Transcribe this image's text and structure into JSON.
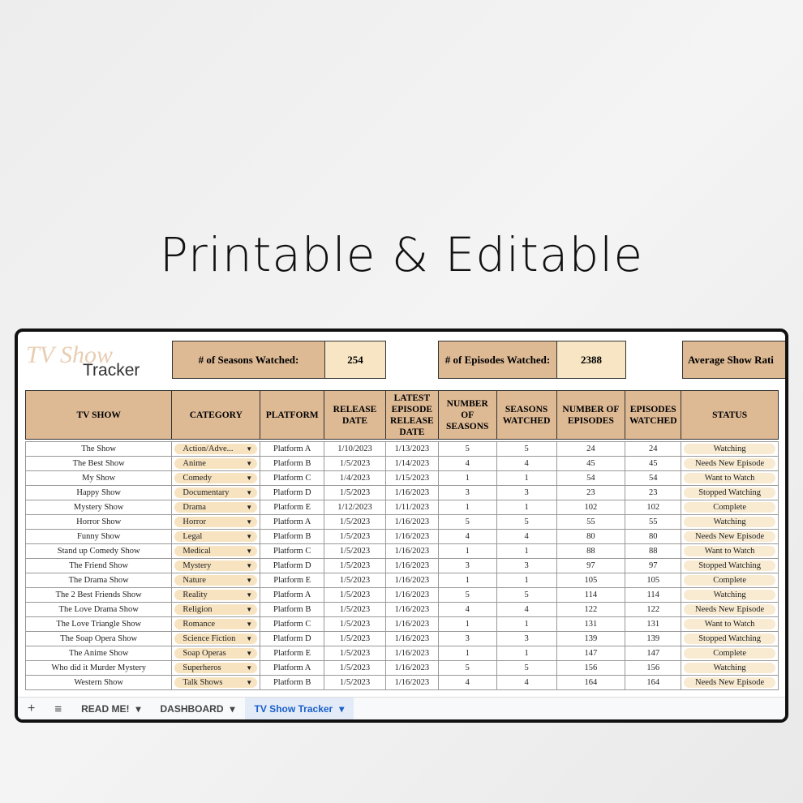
{
  "headline": "Printable & Editable",
  "logo": {
    "script": "TV Show",
    "word": "Tracker"
  },
  "summary": [
    {
      "label": "# of Seasons Watched:",
      "value": 254
    },
    {
      "label": "# of Episodes Watched:",
      "value": 2388
    },
    {
      "label": "Average Show Rati"
    }
  ],
  "table": {
    "headers": [
      "TV SHOW",
      "CATEGORY",
      "PLATFORM",
      "RELEASE DATE",
      "LATEST EPISODE RELEASE DATE",
      "NUMBER OF SEASONS",
      "SEASONS WATCHED",
      "NUMBER OF EPISODES",
      "EPISODES WATCHED",
      "STATUS"
    ],
    "rows": [
      [
        "The Show",
        "Action/Adve...",
        "Platform A",
        "1/10/2023",
        "1/13/2023",
        5,
        5,
        24,
        24,
        "Watching"
      ],
      [
        "The Best Show",
        "Anime",
        "Platform B",
        "1/5/2023",
        "1/14/2023",
        4,
        4,
        45,
        45,
        "Needs New Episode"
      ],
      [
        "My Show",
        "Comedy",
        "Platform C",
        "1/4/2023",
        "1/15/2023",
        1,
        1,
        54,
        54,
        "Want to Watch"
      ],
      [
        "Happy Show",
        "Documentary",
        "Platform D",
        "1/5/2023",
        "1/16/2023",
        3,
        3,
        23,
        23,
        "Stopped Watching"
      ],
      [
        "Mystery Show",
        "Drama",
        "Platform E",
        "1/12/2023",
        "1/11/2023",
        1,
        1,
        102,
        102,
        "Complete"
      ],
      [
        "Horror Show",
        "Horror",
        "Platform A",
        "1/5/2023",
        "1/16/2023",
        5,
        5,
        55,
        55,
        "Watching"
      ],
      [
        "Funny Show",
        "Legal",
        "Platform B",
        "1/5/2023",
        "1/16/2023",
        4,
        4,
        80,
        80,
        "Needs New Episode"
      ],
      [
        "Stand up Comedy Show",
        "Medical",
        "Platform C",
        "1/5/2023",
        "1/16/2023",
        1,
        1,
        88,
        88,
        "Want to Watch"
      ],
      [
        "The Friend Show",
        "Mystery",
        "Platform D",
        "1/5/2023",
        "1/16/2023",
        3,
        3,
        97,
        97,
        "Stopped Watching"
      ],
      [
        "The Drama Show",
        "Nature",
        "Platform E",
        "1/5/2023",
        "1/16/2023",
        1,
        1,
        105,
        105,
        "Complete"
      ],
      [
        "The 2 Best Friends Show",
        "Reality",
        "Platform A",
        "1/5/2023",
        "1/16/2023",
        5,
        5,
        114,
        114,
        "Watching"
      ],
      [
        "The Love Drama Show",
        "Religion",
        "Platform B",
        "1/5/2023",
        "1/16/2023",
        4,
        4,
        122,
        122,
        "Needs New Episode"
      ],
      [
        "The Love Triangle Show",
        "Romance",
        "Platform C",
        "1/5/2023",
        "1/16/2023",
        1,
        1,
        131,
        131,
        "Want to Watch"
      ],
      [
        "The Soap Opera Show",
        "Science Fiction",
        "Platform D",
        "1/5/2023",
        "1/16/2023",
        3,
        3,
        139,
        139,
        "Stopped Watching"
      ],
      [
        "The Anime Show",
        "Soap Operas",
        "Platform E",
        "1/5/2023",
        "1/16/2023",
        1,
        1,
        147,
        147,
        "Complete"
      ],
      [
        "Who did it Murder Mystery",
        "Superheros",
        "Platform A",
        "1/5/2023",
        "1/16/2023",
        5,
        5,
        156,
        156,
        "Watching"
      ],
      [
        "Western Show",
        "Talk Shows",
        "Platform B",
        "1/5/2023",
        "1/16/2023",
        4,
        4,
        164,
        164,
        "Needs New Episode"
      ]
    ]
  },
  "tabs": [
    "READ ME!",
    "DASHBOARD",
    "TV Show Tracker"
  ]
}
